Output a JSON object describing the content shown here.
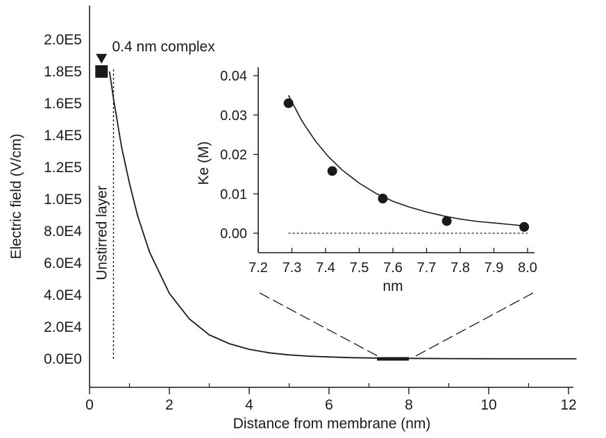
{
  "chart_data": [
    {
      "type": "line",
      "xlabel": "Distance from membrane (nm)",
      "ylabel": "Electric field (V/cm)",
      "xlim": [
        0,
        12.2
      ],
      "ylim": [
        0,
        220000
      ],
      "x_ticks": [
        0,
        2,
        4,
        6,
        8,
        10,
        12
      ],
      "x_tick_labels": [
        "0",
        "2",
        "4",
        "6",
        "8",
        "10",
        "12"
      ],
      "x_minor_ticks": [
        1,
        3,
        5,
        7,
        9,
        11
      ],
      "y_ticks": [
        0,
        20000,
        40000,
        60000,
        80000,
        100000,
        120000,
        140000,
        160000,
        180000,
        200000
      ],
      "y_tick_labels": [
        "0.0E0",
        "2.0E4",
        "4.0E4",
        "6.0E4",
        "8.0E4",
        "1.0E5",
        "1.2E5",
        "1.4E5",
        "1.6E5",
        "1.8E5",
        "2.0E5"
      ],
      "series": [
        {
          "x": [
            0.5,
            0.6,
            0.8,
            1.0,
            1.2,
            1.5,
            2.0,
            2.5,
            3.0,
            3.5,
            4.0,
            4.5,
            5.0,
            5.5,
            6.0,
            6.5,
            7.0,
            7.5,
            8.0,
            9.0,
            10.0,
            11.0,
            12.2
          ],
          "y": [
            180000,
            163000,
            133000,
            110000,
            90000,
            67000,
            41000,
            25000,
            15000,
            9500,
            6000,
            3800,
            2500,
            1700,
            1200,
            800,
            550,
            400,
            300,
            180,
            100,
            60,
            30
          ]
        }
      ],
      "markers": [
        {
          "shape": "square",
          "x": 0.3,
          "y": 180000
        },
        {
          "shape": "triangle-down",
          "x": 0.3,
          "y": 188000
        }
      ],
      "annotations": [
        {
          "text": "0.4 nm complex",
          "x": 1.4,
          "y": 196000
        },
        {
          "text": "Unstirred layer",
          "x": 0.6,
          "y": 105000
        }
      ],
      "reference_line": {
        "style": "dotted",
        "x": 0.6,
        "y_range": [
          0,
          182000
        ]
      },
      "highlight_segment": {
        "x_range": [
          7.2,
          8.0
        ],
        "y": 0
      },
      "grid": false
    },
    {
      "type": "scatter",
      "xlabel": "nm",
      "ylabel": "Ke (M)",
      "xlim": [
        7.2,
        8.0
      ],
      "ylim": [
        0,
        0.04
      ],
      "x_ticks": [
        7.2,
        7.3,
        7.4,
        7.5,
        7.6,
        7.7,
        7.8,
        7.9,
        8.0
      ],
      "x_tick_labels": [
        "7.2",
        "7.3",
        "7.4",
        "7.5",
        "7.6",
        "7.7",
        "7.8",
        "7.9",
        "8.0"
      ],
      "y_ticks": [
        0,
        0.01,
        0.02,
        0.03,
        0.04
      ],
      "y_tick_labels": [
        "0.00",
        "0.01",
        "0.02",
        "0.03",
        "0.04"
      ],
      "points": [
        {
          "x": 7.29,
          "y": 0.033
        },
        {
          "x": 7.42,
          "y": 0.0158
        },
        {
          "x": 7.57,
          "y": 0.0088
        },
        {
          "x": 7.76,
          "y": 0.0031
        },
        {
          "x": 7.99,
          "y": 0.0016
        }
      ],
      "fit_curve": {
        "x": [
          7.29,
          7.33,
          7.37,
          7.41,
          7.45,
          7.5,
          7.55,
          7.6,
          7.65,
          7.7,
          7.75,
          7.8,
          7.85,
          7.9,
          7.95,
          8.0
        ],
        "y": [
          0.035,
          0.0285,
          0.0234,
          0.0193,
          0.016,
          0.0127,
          0.0101,
          0.0081,
          0.0066,
          0.0054,
          0.0044,
          0.0036,
          0.003,
          0.0026,
          0.0022,
          0.0018
        ]
      },
      "baseline": {
        "style": "dotted",
        "y": 0,
        "x_range": [
          7.29,
          8.0
        ]
      },
      "grid": false
    }
  ]
}
